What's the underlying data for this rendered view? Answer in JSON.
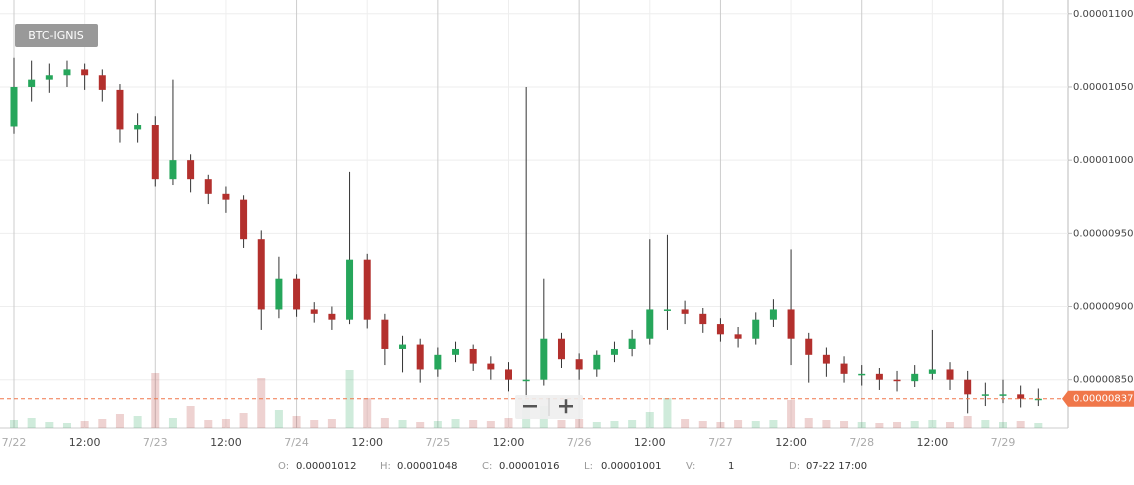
{
  "chart_data": {
    "type": "candlestick",
    "series": [
      {
        "name": "BTC-IGNIS",
        "up_color": "#26a65b",
        "down_color": "#b3302d",
        "open": [
          1.023e-05,
          1.05e-05,
          1.055e-05,
          1.058e-05,
          1.062e-05,
          1.058e-05,
          1.048e-05,
          1.021e-05,
          1.024e-05,
          9.87e-06,
          1e-05,
          9.87e-06,
          9.77e-06,
          9.73e-06,
          9.46e-06,
          8.98e-06,
          9.19e-06,
          8.98e-06,
          8.95e-06,
          8.91e-06,
          9.32e-06,
          8.91e-06,
          8.71e-06,
          8.74e-06,
          8.57e-06,
          8.67e-06,
          8.71e-06,
          8.61e-06,
          8.57e-06,
          8.5e-06,
          8.5e-06,
          8.78e-06,
          8.64e-06,
          8.57e-06,
          8.67e-06,
          8.71e-06,
          8.78e-06,
          8.98e-06,
          8.98e-06,
          8.95e-06,
          8.88e-06,
          8.81e-06,
          8.78e-06,
          8.91e-06,
          8.98e-06,
          8.78e-06,
          8.67e-06,
          8.61e-06,
          8.54e-06,
          8.54e-06,
          8.5e-06,
          8.49e-06,
          8.54e-06,
          8.57e-06,
          8.5e-06,
          8.4e-06,
          8.4e-06,
          8.4e-06,
          8.37e-06
        ],
        "high": [
          1.07e-05,
          1.068e-05,
          1.066e-05,
          1.068e-05,
          1.066e-05,
          1.062e-05,
          1.052e-05,
          1.032e-05,
          1.03e-05,
          1.055e-05,
          1.004e-05,
          9.9e-06,
          9.82e-06,
          9.76e-06,
          9.52e-06,
          9.34e-06,
          9.22e-06,
          9.03e-06,
          9e-06,
          9.92e-06,
          9.36e-06,
          8.95e-06,
          8.8e-06,
          8.78e-06,
          8.72e-06,
          8.76e-06,
          8.74e-06,
          8.66e-06,
          8.62e-06,
          1.05e-05,
          9.19e-06,
          8.82e-06,
          8.68e-06,
          8.7e-06,
          8.76e-06,
          8.84e-06,
          9.46e-06,
          9.49e-06,
          9.04e-06,
          8.99e-06,
          8.92e-06,
          8.86e-06,
          8.96e-06,
          9.05e-06,
          9.39e-06,
          8.82e-06,
          8.72e-06,
          8.66e-06,
          8.6e-06,
          8.58e-06,
          8.56e-06,
          8.6e-06,
          8.84e-06,
          8.62e-06,
          8.56e-06,
          8.48e-06,
          8.5e-06,
          8.46e-06,
          8.44e-06
        ],
        "low": [
          1.018e-05,
          1.04e-05,
          1.046e-05,
          1.05e-05,
          1.048e-05,
          1.04e-05,
          1.012e-05,
          1.012e-05,
          9.82e-06,
          9.83e-06,
          9.78e-06,
          9.7e-06,
          9.64e-06,
          9.4e-06,
          8.84e-06,
          8.92e-06,
          8.93e-06,
          8.89e-06,
          8.84e-06,
          8.88e-06,
          8.85e-06,
          8.6e-06,
          8.55e-06,
          8.48e-06,
          8.52e-06,
          8.62e-06,
          8.56e-06,
          8.5e-06,
          8.42e-06,
          8.38e-06,
          8.46e-06,
          8.58e-06,
          8.5e-06,
          8.52e-06,
          8.62e-06,
          8.66e-06,
          8.74e-06,
          8.84e-06,
          8.88e-06,
          8.82e-06,
          8.76e-06,
          8.72e-06,
          8.74e-06,
          8.86e-06,
          8.6e-06,
          8.48e-06,
          8.52e-06,
          8.48e-06,
          8.46e-06,
          8.43e-06,
          8.42e-06,
          8.45e-06,
          8.5e-06,
          8.43e-06,
          8.27e-06,
          8.32e-06,
          8.34e-06,
          8.31e-06,
          8.32e-06
        ],
        "close": [
          1.05e-05,
          1.055e-05,
          1.058e-05,
          1.062e-05,
          1.058e-05,
          1.048e-05,
          1.021e-05,
          1.024e-05,
          9.87e-06,
          1e-05,
          9.87e-06,
          9.77e-06,
          9.73e-06,
          9.46e-06,
          8.98e-06,
          9.19e-06,
          8.98e-06,
          8.95e-06,
          8.91e-06,
          9.32e-06,
          8.91e-06,
          8.71e-06,
          8.74e-06,
          8.57e-06,
          8.67e-06,
          8.71e-06,
          8.61e-06,
          8.57e-06,
          8.5e-06,
          8.5e-06,
          8.78e-06,
          8.64e-06,
          8.57e-06,
          8.67e-06,
          8.71e-06,
          8.78e-06,
          8.98e-06,
          8.98e-06,
          8.95e-06,
          8.88e-06,
          8.81e-06,
          8.78e-06,
          8.91e-06,
          8.98e-06,
          8.78e-06,
          8.67e-06,
          8.61e-06,
          8.54e-06,
          8.54e-06,
          8.5e-06,
          8.49e-06,
          8.54e-06,
          8.57e-06,
          8.5e-06,
          8.4e-06,
          8.4e-06,
          8.4e-06,
          8.37e-06,
          8.37e-06
        ],
        "volume": [
          8,
          10,
          6,
          5,
          7,
          9,
          14,
          12,
          55,
          10,
          22,
          8,
          9,
          15,
          50,
          18,
          12,
          8,
          9,
          58,
          30,
          10,
          8,
          6,
          7,
          9,
          8,
          7,
          10,
          28,
          22,
          8,
          9,
          6,
          7,
          8,
          16,
          30,
          9,
          7,
          6,
          8,
          7,
          8,
          28,
          10,
          8,
          7,
          6,
          5,
          6,
          7,
          8,
          6,
          12,
          8,
          6,
          7,
          5
        ]
      }
    ],
    "categories": [
      "7/22",
      null,
      null,
      null,
      "12:00",
      null,
      null,
      null,
      "7/23",
      null,
      null,
      null,
      "12:00",
      null,
      null,
      null,
      "7/24",
      null,
      null,
      null,
      "12:00",
      null,
      null,
      null,
      "7/25",
      null,
      null,
      null,
      "12:00",
      null,
      null,
      null,
      "7/26",
      null,
      null,
      null,
      "12:00",
      null,
      null,
      null,
      "7/27",
      null,
      null,
      null,
      "12:00",
      null,
      null,
      null,
      "7/28",
      null,
      null,
      null,
      "12:00",
      null,
      null,
      null,
      "7/29",
      null,
      null
    ],
    "ylim": [
      8.17e-06,
      1.106e-05
    ],
    "yticks": [
      {
        "value": 8.5e-06,
        "label": "0.00000850"
      },
      {
        "value": 9e-06,
        "label": "0.00000900"
      },
      {
        "value": 9.5e-06,
        "label": "0.00000950"
      },
      {
        "value": 1e-05,
        "label": "0.00001000"
      },
      {
        "value": 1.05e-05,
        "label": "0.00001050"
      },
      {
        "value": 1.1e-05,
        "label": "0.00001100"
      }
    ],
    "vlim": [
      0,
      100
    ],
    "grid": true,
    "last_price": {
      "value": 8.37e-06,
      "label": "0.00000837"
    },
    "last_price_color": "#f0774a",
    "info": [
      {
        "label": "O:",
        "text": "0.00001012"
      },
      {
        "label": "H:",
        "text": "0.00001048"
      },
      {
        "label": "C:",
        "text": "0.00001016"
      },
      {
        "label": "L:",
        "text": "0.00001001"
      },
      {
        "label": "V:",
        "text": "1"
      },
      {
        "label": "D:",
        "text": "07-22 17:00"
      }
    ]
  }
}
